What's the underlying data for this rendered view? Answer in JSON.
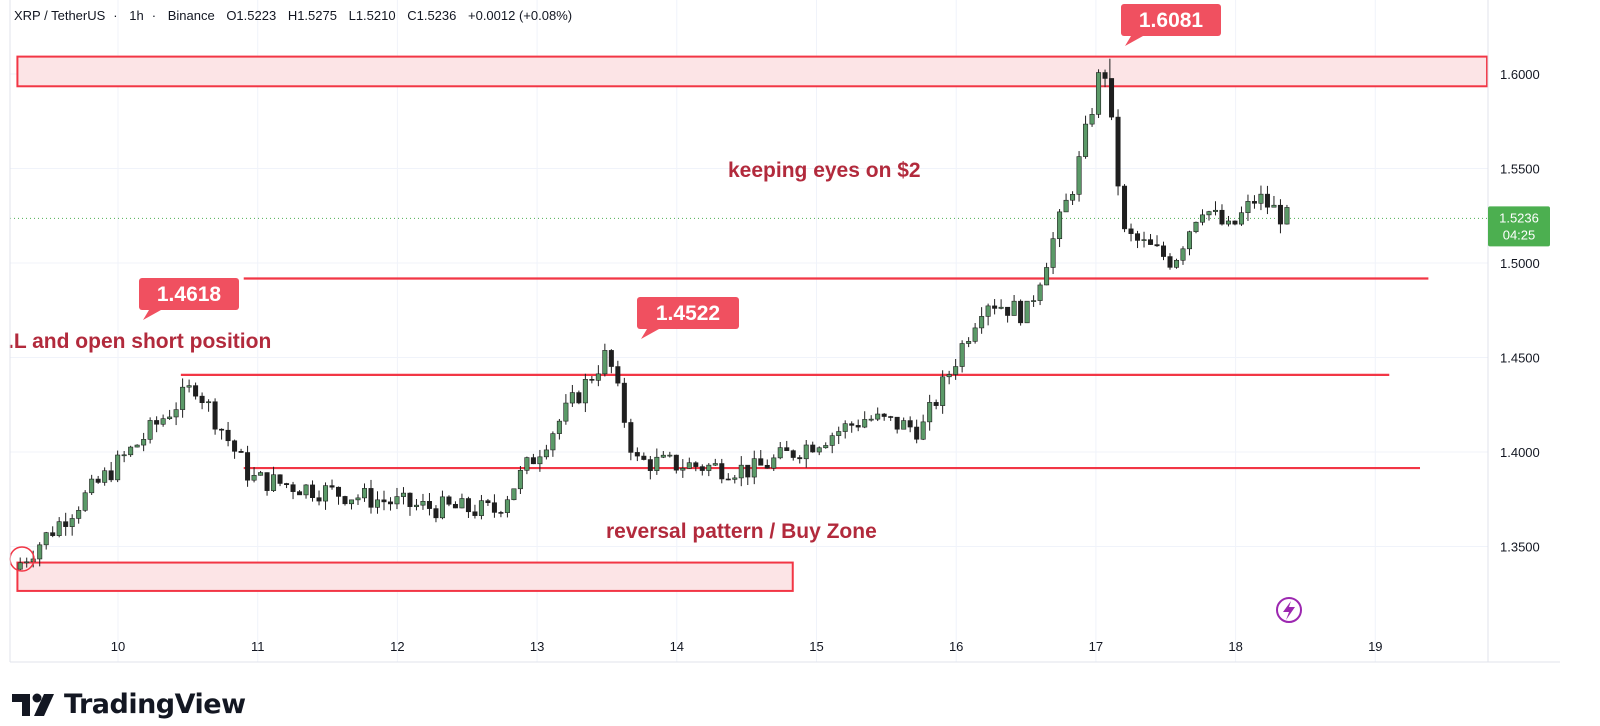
{
  "header": {
    "symbol": "XRP / TetherUS",
    "separator": "·",
    "interval": "1h",
    "exchange": "Binance",
    "open": "O1.5223",
    "high": "H1.5275",
    "low": "L1.5210",
    "close": "C1.5236",
    "change": "+0.0012 (+0.08%)"
  },
  "price_scale": {
    "ticks": [
      "1.6000",
      "1.5500",
      "1.5000",
      "1.4500",
      "1.4000",
      "1.3500"
    ],
    "tick_values": [
      1.6,
      1.55,
      1.5,
      1.45,
      1.4,
      1.35
    ],
    "last_price": "1.5236",
    "countdown": "04:25"
  },
  "time_scale": {
    "ticks": [
      "10",
      "11",
      "12",
      "13",
      "14",
      "15",
      "16",
      "17",
      "18",
      "19"
    ]
  },
  "annotations": {
    "callout_top": "1.6081",
    "callout_left": "1.4618",
    "callout_mid": "1.4522",
    "text_top": "keeping eyes on $2",
    "text_left": ".L and open short position",
    "text_bottom": "reversal pattern / Buy Zone"
  },
  "colors": {
    "up": "#26a69a",
    "up_fill": "#5b9a68",
    "down": "#1f1f1f",
    "line": "#f23645",
    "zone_fill": "#fce4e6",
    "callout": "#f05060",
    "annotation_text": "#b22a3c",
    "last_price_bg": "#4caf50",
    "bolt": "#9c27b0"
  },
  "logo": {
    "text": "TradingView",
    "icon": "tradingview-logo-icon"
  },
  "chart_data": {
    "type": "candlestick",
    "symbol": "XRP / TetherUS",
    "interval": "1h",
    "x_ticks": [
      "10",
      "11",
      "12",
      "13",
      "14",
      "15",
      "16",
      "17",
      "18",
      "19"
    ],
    "ylim": [
      1.312,
      1.622
    ],
    "y_ticks": [
      1.35,
      1.4,
      1.45,
      1.5,
      1.55,
      1.6
    ],
    "last_price": 1.5236,
    "key_points": [
      {
        "day": 9.3,
        "price": 1.338
      },
      {
        "day": 10.6,
        "price": 1.4355
      },
      {
        "day": 11.0,
        "price": 1.386
      },
      {
        "day": 12.2,
        "price": 1.371
      },
      {
        "day": 12.75,
        "price": 1.369
      },
      {
        "day": 13.55,
        "price": 1.4522
      },
      {
        "day": 13.75,
        "price": 1.395
      },
      {
        "day": 14.6,
        "price": 1.3905
      },
      {
        "day": 15.4,
        "price": 1.418
      },
      {
        "day": 15.8,
        "price": 1.412
      },
      {
        "day": 16.25,
        "price": 1.481
      },
      {
        "day": 16.55,
        "price": 1.473
      },
      {
        "day": 16.9,
        "price": 1.545
      },
      {
        "day": 17.1,
        "price": 1.6081
      },
      {
        "day": 17.25,
        "price": 1.515
      },
      {
        "day": 17.6,
        "price": 1.501
      },
      {
        "day": 17.8,
        "price": 1.531
      },
      {
        "day": 18.0,
        "price": 1.517
      },
      {
        "day": 18.2,
        "price": 1.535
      },
      {
        "day": 18.4,
        "price": 1.5236
      }
    ],
    "levels": [
      {
        "type": "zone",
        "from": 1.5935,
        "to": 1.6092,
        "x_start": 9.28,
        "x_end": 19.8
      },
      {
        "type": "line",
        "value": 1.4918,
        "x_start": 10.9,
        "x_end": 19.38
      },
      {
        "type": "line",
        "value": 1.4408,
        "x_start": 10.45,
        "x_end": 19.1
      },
      {
        "type": "line",
        "value": 1.3915,
        "x_start": 10.9,
        "x_end": 19.32
      },
      {
        "type": "zone",
        "from": 1.3265,
        "to": 1.3415,
        "x_start": 9.28,
        "x_end": 14.83
      }
    ],
    "annotations": [
      {
        "text": "1.6081",
        "kind": "callout",
        "day": 17.1,
        "price": 1.6081
      },
      {
        "text": "1.4618",
        "kind": "callout",
        "day": 10.4,
        "price": 1.4618
      },
      {
        "text": "1.4522",
        "kind": "callout",
        "day": 13.4,
        "price": 1.4522
      },
      {
        "text": "keeping eyes on $2",
        "kind": "text"
      },
      {
        "text": ".L and open short position",
        "kind": "text"
      },
      {
        "text": "reversal pattern / Buy Zone",
        "kind": "text"
      }
    ]
  }
}
